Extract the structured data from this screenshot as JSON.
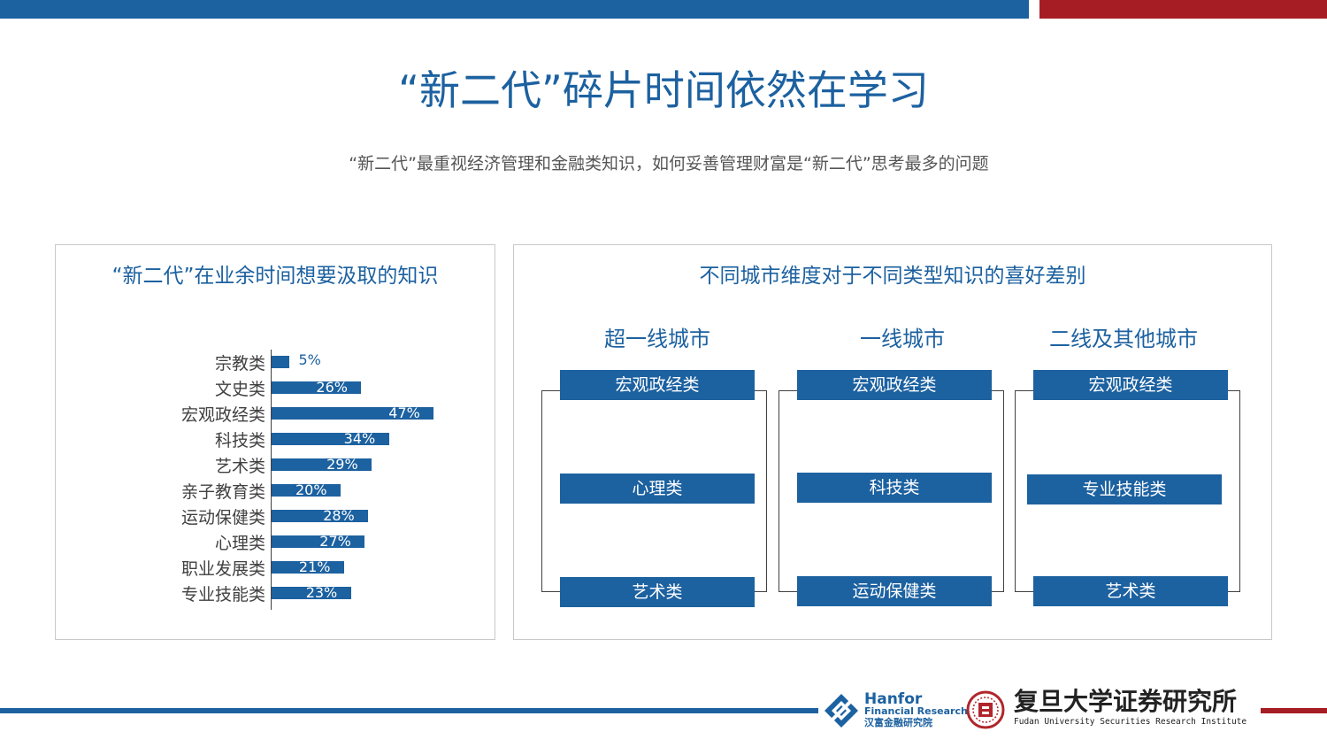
{
  "title": "“新二代”碎片时间依然在学习",
  "subtitle": "“新二代”最重视经济管理和金融类知识，如何妥善管理财富是“新二代”思考最多的问题",
  "left_panel": {
    "title": "“新二代”在业余时间想要汲取的知识"
  },
  "chart_data": {
    "type": "bar",
    "orientation": "horizontal",
    "categories": [
      "宗教类",
      "文史类",
      "宏观政经类",
      "科技类",
      "艺术类",
      "亲子教育类",
      "运动保健类",
      "心理类",
      "职业发展类",
      "专业技能类"
    ],
    "values": [
      5,
      26,
      47,
      34,
      29,
      20,
      28,
      27,
      21,
      23
    ],
    "value_labels": [
      "5%",
      "26%",
      "47%",
      "34%",
      "29%",
      "20%",
      "28%",
      "27%",
      "21%",
      "23%"
    ],
    "unit": "%",
    "xlim": [
      0,
      50
    ],
    "color": "#1c61a0",
    "grid": false
  },
  "right_panel": {
    "title": "不同城市维度对于不同类型知识的喜好差别",
    "columns": [
      {
        "heading": "超一线城市",
        "items": [
          "宏观政经类",
          "心理类",
          "艺术类"
        ]
      },
      {
        "heading": "一线城市",
        "items": [
          "宏观政经类",
          "科技类",
          "运动保健类"
        ]
      },
      {
        "heading": "二线及其他城市",
        "items": [
          "宏观政经类",
          "专业技能类",
          "艺术类"
        ]
      }
    ]
  },
  "footer": {
    "hanfor_name": "Hanfor",
    "hanfor_sub": "Financial Research",
    "hanfor_cn": "汉富金融研究院",
    "fudan_cn": "复旦大学证券研究所",
    "fudan_en": "Fudan University Securities Research Institute"
  },
  "colors": {
    "primary": "#1c61a0",
    "accent": "#a61e24"
  }
}
